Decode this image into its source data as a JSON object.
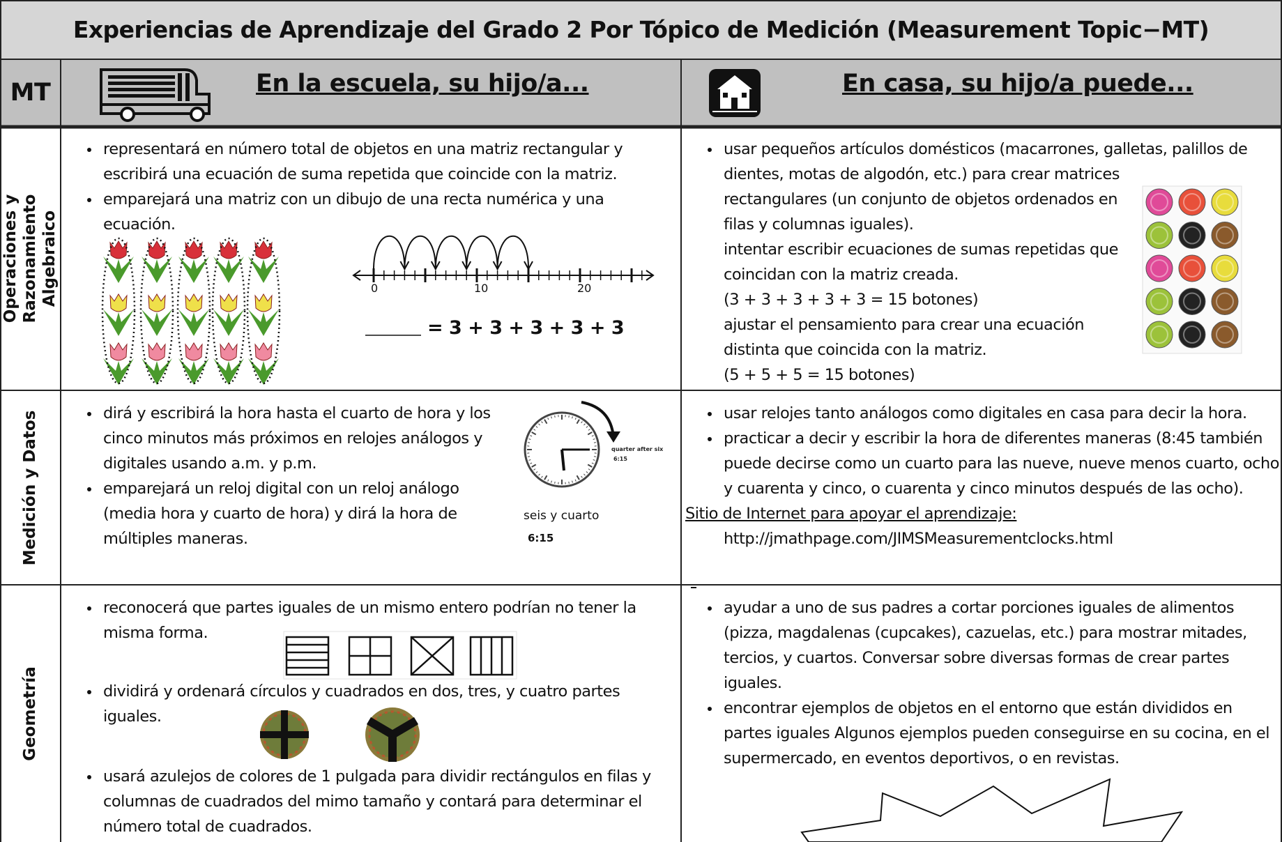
{
  "title": "Experiencias de Aprendizaje del Grado 2 Por Tópico de Medición (Measurement Topic−MT)",
  "header": {
    "mt": "MT",
    "school": "En la escuela, su hijo/a...",
    "home": "En casa, su hijo/a puede..."
  },
  "rows": [
    {
      "topic": "Operaciones y Razonamiento Algebraico",
      "school": [
        "representará en número total de objetos en una matriz rectangular y escribirá una ecuación de suma repetida que coincide con la matriz.",
        "emparejará una matriz con un dibujo de una recta numérica y una ecuación."
      ],
      "number_line": {
        "labels": [
          "0",
          "10",
          "20"
        ],
        "equation": "= 3 + 3 + 3 + 3 + 3"
      },
      "home": [
        "usar pequeños artículos domésticos (macarrones, galletas, palillos de dientes, motas de algodón, etc.) para crear matrices rectangulares (un conjunto de objetos ordenados en filas y columnas iguales)."
      ],
      "home_notes": [
        "intentar escribir ecuaciones de sumas repetidas que coincidan con la matriz creada.",
        "(3 + 3 + 3 + 3 + 3 = 15 botones)",
        "ajustar el pensamiento para crear una ecuación distinta que coincida con la matriz.",
        "(5 + 5 + 5 = 15 botones)"
      ]
    },
    {
      "topic": "Medición y Datos",
      "school": [
        "dirá y escribirá la hora hasta el cuarto de hora y los cinco minutos más próximos en relojes análogos y digitales usando a.m. y p.m.",
        "emparejará un reloj digital con un reloj análogo (media hora y cuarto de hora) y dirá la hora de múltiples maneras."
      ],
      "clock": {
        "caption": "quarter after six",
        "caption_time": "6:15",
        "label": "seis y cuarto",
        "time": "6:15"
      },
      "home": [
        "usar relojes tanto análogos como digitales en casa para decir la hora.",
        "practicar a decir y escribir la hora de diferentes maneras (8:45 también puede decirse como un cuarto para las nueve, nueve menos cuarto, ocho y cuarenta y cinco, o cuarenta y cinco minutos después de las ocho)."
      ],
      "site": {
        "label": "Sitio de Internet para apoyar el aprendizaje:",
        "url": "http://jmathpage.com/JIMSMeasurementclocks.html"
      }
    },
    {
      "topic": "Geometría",
      "school": [
        "reconocerá que partes iguales de un mismo entero podrían no tener la misma forma.",
        "dividirá y ordenará círculos y cuadrados en dos, tres, y cuatro partes iguales.",
        "usará azulejos de colores de 1 pulgada para dividir rectángulos en filas y columnas de cuadrados del mimo tamaño y contará para determinar el número total de cuadrados."
      ],
      "home": [
        "ayudar a uno de sus padres a cortar porciones iguales de alimentos (pizza, magdalenas (cupcakes), cazuelas, etc.) para mostrar mitades, tercios, y cuartos. Conversar sobre diversas formas de crear partes iguales.",
        "encontrar ejemplos de objetos en el entorno que están divididos en partes iguales  Algunos ejemplos pueden conseguirse en su cocina, en el supermercado, en eventos deportivos, o en revistas."
      ]
    }
  ]
}
